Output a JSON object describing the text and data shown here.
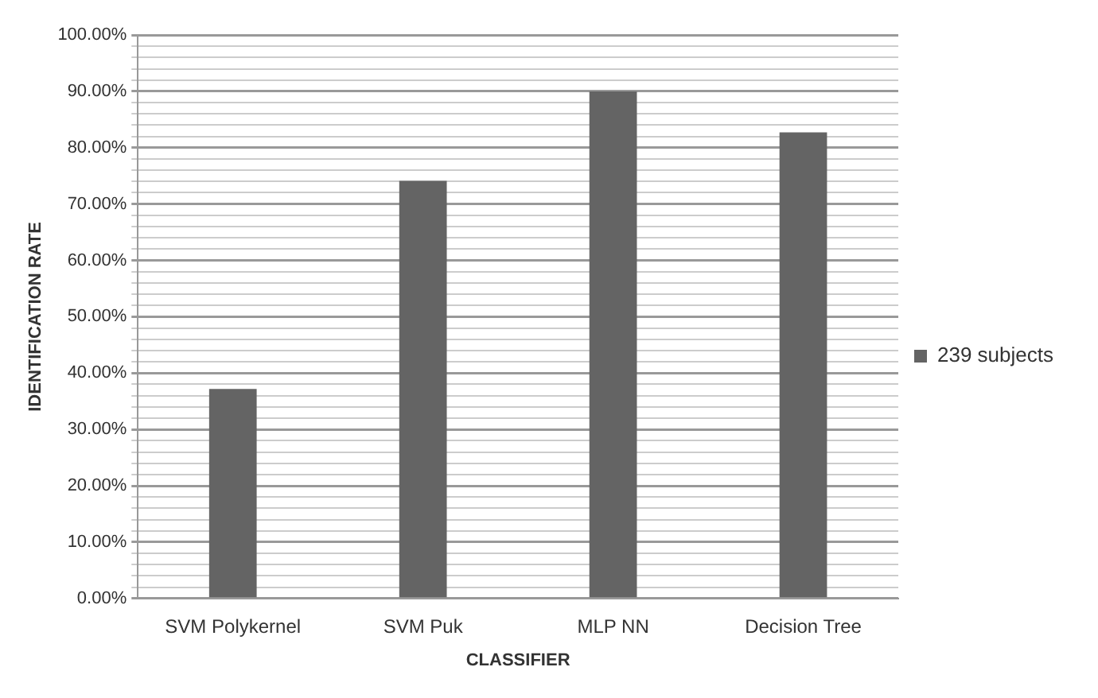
{
  "chart_data": {
    "type": "bar",
    "xlabel": "CLASSIFIER",
    "ylabel": "IDENTIFICATION RATE",
    "categories": [
      "SVM Polykernel",
      "SVM Puk",
      "MLP NN",
      "Decision Tree"
    ],
    "series": [
      {
        "name": "239 subjects",
        "color": "#646464",
        "values": [
          37.2,
          74.1,
          90,
          82.7
        ]
      }
    ],
    "ylim": [
      0,
      100
    ],
    "yticks": [
      {
        "value": 0,
        "label": "0.00%"
      },
      {
        "value": 2,
        "label": null
      },
      {
        "value": 4,
        "label": null
      },
      {
        "value": 6,
        "label": null
      },
      {
        "value": 8,
        "label": null
      },
      {
        "value": 10,
        "label": "10.00%"
      },
      {
        "value": 12,
        "label": null
      },
      {
        "value": 14,
        "label": null
      },
      {
        "value": 16,
        "label": null
      },
      {
        "value": 18,
        "label": null
      },
      {
        "value": 20,
        "label": "20.00%"
      },
      {
        "value": 22,
        "label": null
      },
      {
        "value": 24,
        "label": null
      },
      {
        "value": 26,
        "label": null
      },
      {
        "value": 28,
        "label": null
      },
      {
        "value": 30,
        "label": "30.00%"
      },
      {
        "value": 32,
        "label": null
      },
      {
        "value": 34,
        "label": null
      },
      {
        "value": 36,
        "label": null
      },
      {
        "value": 38,
        "label": null
      },
      {
        "value": 40,
        "label": "40.00%"
      },
      {
        "value": 42,
        "label": null
      },
      {
        "value": 44,
        "label": null
      },
      {
        "value": 46,
        "label": null
      },
      {
        "value": 48,
        "label": null
      },
      {
        "value": 50,
        "label": "50.00%"
      },
      {
        "value": 52,
        "label": null
      },
      {
        "value": 54,
        "label": null
      },
      {
        "value": 56,
        "label": null
      },
      {
        "value": 58,
        "label": null
      },
      {
        "value": 60,
        "label": "60.00%"
      },
      {
        "value": 62,
        "label": null
      },
      {
        "value": 64,
        "label": null
      },
      {
        "value": 66,
        "label": null
      },
      {
        "value": 68,
        "label": null
      },
      {
        "value": 70,
        "label": "70.00%"
      },
      {
        "value": 72,
        "label": null
      },
      {
        "value": 74,
        "label": null
      },
      {
        "value": 76,
        "label": null
      },
      {
        "value": 78,
        "label": null
      },
      {
        "value": 80,
        "label": "80.00%"
      },
      {
        "value": 82,
        "label": null
      },
      {
        "value": 84,
        "label": null
      },
      {
        "value": 86,
        "label": null
      },
      {
        "value": 88,
        "label": null
      },
      {
        "value": 90,
        "label": "90.00%"
      },
      {
        "value": 92,
        "label": null
      },
      {
        "value": 94,
        "label": null
      },
      {
        "value": 96,
        "label": null
      },
      {
        "value": 98,
        "label": null
      },
      {
        "value": 100,
        "label": "100.00%"
      }
    ],
    "grid": "y",
    "legend": "right"
  }
}
